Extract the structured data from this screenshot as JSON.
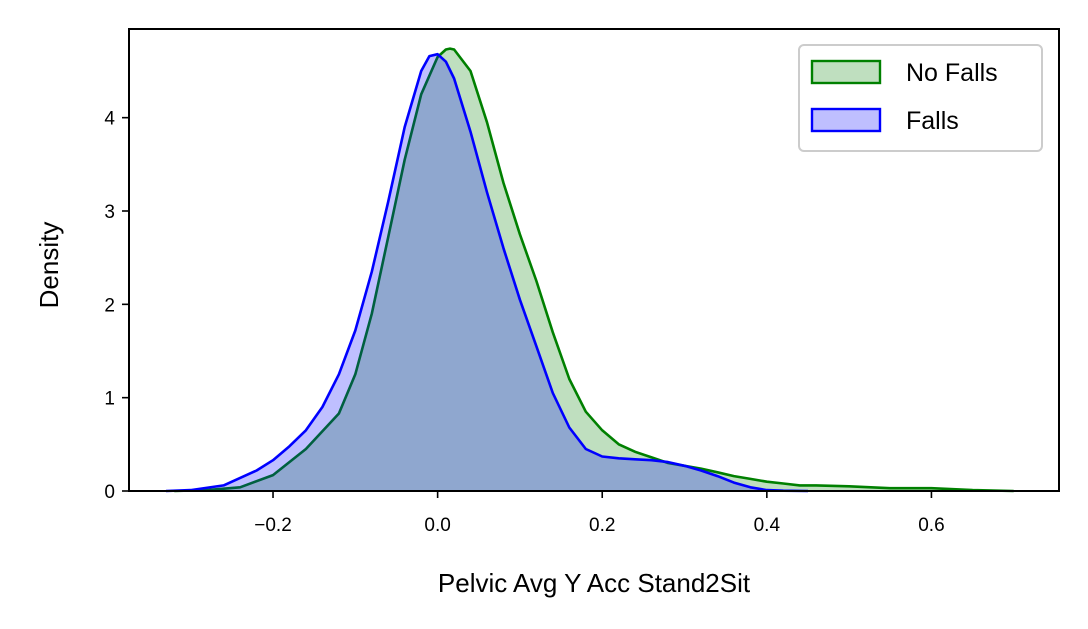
{
  "chart_data": {
    "type": "area",
    "title": "",
    "xlabel": "Pelvic Avg Y Acc Stand2Sit",
    "ylabel": "Density",
    "xlim": [
      -0.375,
      0.755
    ],
    "ylim": [
      0,
      4.95
    ],
    "xticks": [
      -0.2,
      0.0,
      0.2,
      0.4,
      0.6
    ],
    "xtick_labels": [
      "−0.2",
      "0.0",
      "0.2",
      "0.4",
      "0.6"
    ],
    "yticks": [
      0,
      1,
      2,
      3,
      4
    ],
    "ytick_labels": [
      "0",
      "1",
      "2",
      "3",
      "4"
    ],
    "grid": false,
    "legend_position": "top-right",
    "series": [
      {
        "name": "No Falls",
        "line_color": "#008000",
        "fill_color": "#008000",
        "fill_opacity": 0.25,
        "x": [
          -0.32,
          -0.28,
          -0.24,
          -0.2,
          -0.16,
          -0.12,
          -0.1,
          -0.08,
          -0.06,
          -0.04,
          -0.02,
          0.0,
          0.01,
          0.015,
          0.02,
          0.04,
          0.06,
          0.08,
          0.1,
          0.12,
          0.14,
          0.16,
          0.18,
          0.2,
          0.22,
          0.24,
          0.26,
          0.28,
          0.3,
          0.32,
          0.34,
          0.36,
          0.38,
          0.4,
          0.42,
          0.44,
          0.46,
          0.5,
          0.55,
          0.6,
          0.65,
          0.7
        ],
        "y": [
          0.0,
          0.01,
          0.04,
          0.17,
          0.45,
          0.83,
          1.25,
          1.9,
          2.72,
          3.55,
          4.25,
          4.65,
          4.73,
          4.74,
          4.73,
          4.5,
          3.95,
          3.3,
          2.75,
          2.25,
          1.7,
          1.2,
          0.85,
          0.65,
          0.5,
          0.42,
          0.36,
          0.3,
          0.27,
          0.24,
          0.2,
          0.16,
          0.13,
          0.1,
          0.08,
          0.06,
          0.06,
          0.05,
          0.03,
          0.03,
          0.01,
          0.0
        ]
      },
      {
        "name": "Falls",
        "line_color": "#0000ff",
        "fill_color": "#0000ff",
        "fill_opacity": 0.25,
        "x": [
          -0.33,
          -0.3,
          -0.26,
          -0.22,
          -0.2,
          -0.18,
          -0.16,
          -0.14,
          -0.12,
          -0.1,
          -0.08,
          -0.06,
          -0.04,
          -0.02,
          -0.01,
          0.0,
          0.01,
          0.02,
          0.04,
          0.06,
          0.08,
          0.1,
          0.12,
          0.14,
          0.16,
          0.18,
          0.2,
          0.22,
          0.24,
          0.26,
          0.28,
          0.3,
          0.32,
          0.34,
          0.36,
          0.38,
          0.4,
          0.42,
          0.45
        ],
        "y": [
          0.0,
          0.01,
          0.06,
          0.22,
          0.33,
          0.48,
          0.65,
          0.9,
          1.25,
          1.72,
          2.35,
          3.1,
          3.9,
          4.5,
          4.66,
          4.68,
          4.6,
          4.42,
          3.85,
          3.2,
          2.6,
          2.05,
          1.55,
          1.05,
          0.68,
          0.45,
          0.37,
          0.35,
          0.34,
          0.33,
          0.31,
          0.27,
          0.22,
          0.16,
          0.09,
          0.04,
          0.01,
          0.003,
          0.0
        ]
      }
    ]
  }
}
